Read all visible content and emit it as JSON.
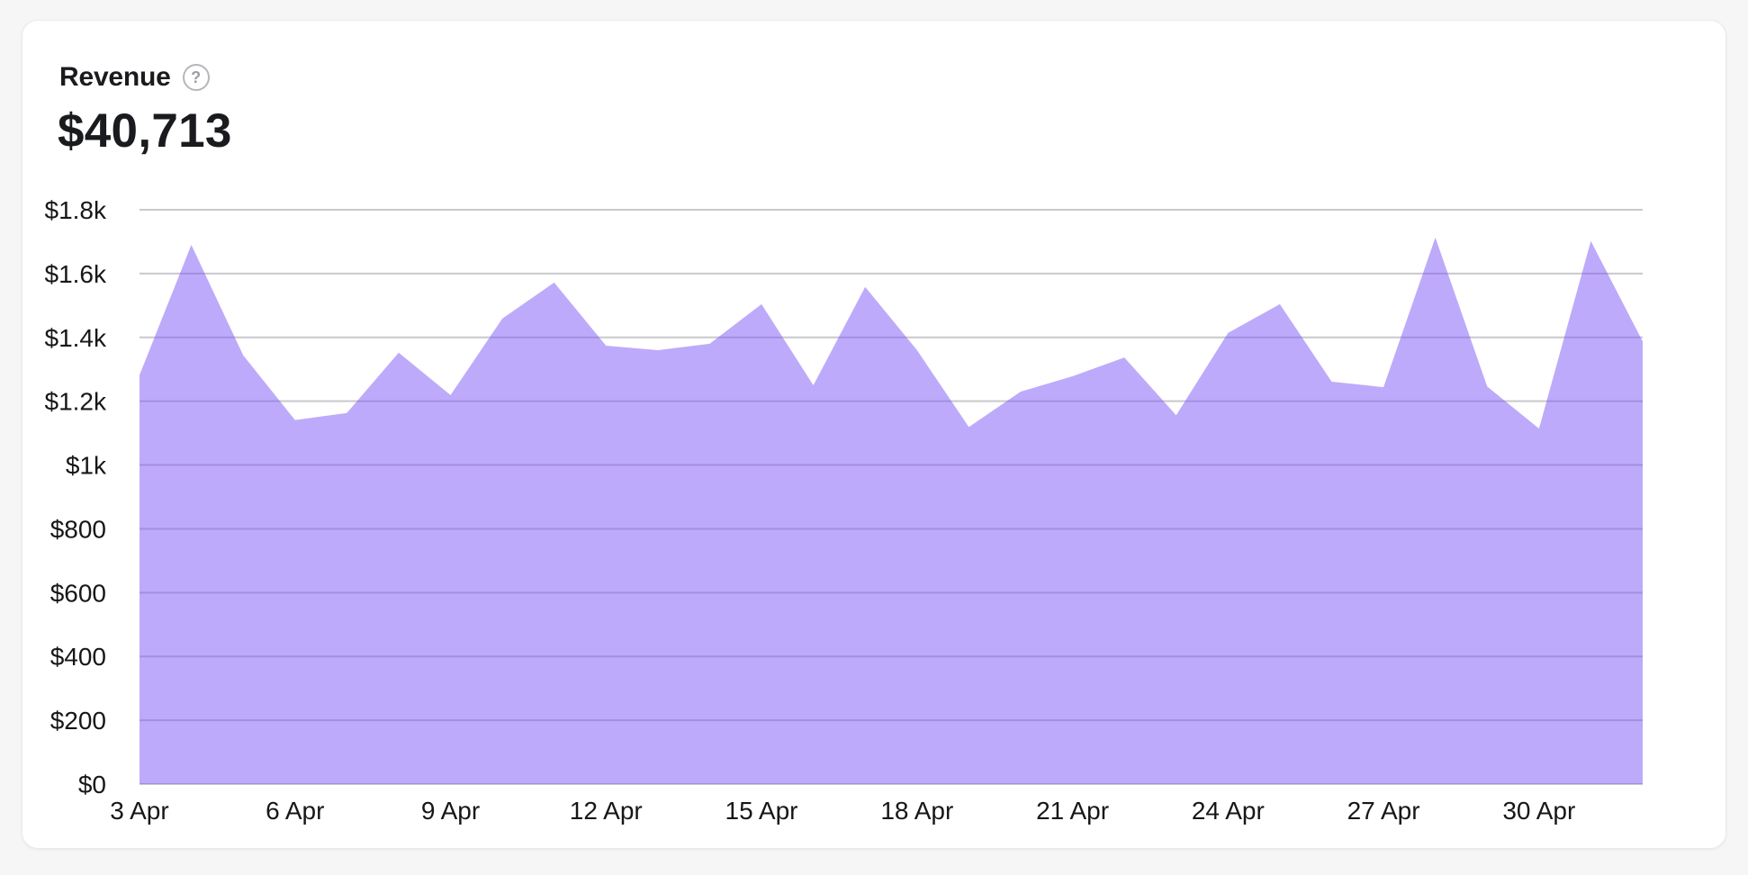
{
  "card": {
    "title": "Revenue",
    "help_icon": "?",
    "total": "$40,713"
  },
  "chart_data": {
    "type": "area",
    "title": "Revenue",
    "total_label": "$40,713",
    "x": [
      "3 Apr",
      "4 Apr",
      "5 Apr",
      "6 Apr",
      "7 Apr",
      "8 Apr",
      "9 Apr",
      "10 Apr",
      "11 Apr",
      "12 Apr",
      "13 Apr",
      "14 Apr",
      "15 Apr",
      "16 Apr",
      "17 Apr",
      "18 Apr",
      "19 Apr",
      "20 Apr",
      "21 Apr",
      "22 Apr",
      "23 Apr",
      "24 Apr",
      "25 Apr",
      "26 Apr",
      "27 Apr",
      "28 Apr",
      "29 Apr",
      "30 Apr",
      "1 May",
      "2 May"
    ],
    "values": [
      1282,
      1690,
      1344,
      1141,
      1163,
      1352,
      1219,
      1459,
      1572,
      1374,
      1360,
      1380,
      1504,
      1250,
      1558,
      1360,
      1119,
      1230,
      1278,
      1337,
      1156,
      1414,
      1504,
      1261,
      1244,
      1713,
      1246,
      1114,
      1702,
      1387
    ],
    "x_tick_labels": [
      "3 Apr",
      "6 Apr",
      "9 Apr",
      "12 Apr",
      "15 Apr",
      "18 Apr",
      "21 Apr",
      "24 Apr",
      "27 Apr",
      "30 Apr"
    ],
    "x_tick_indices": [
      0,
      3,
      6,
      9,
      12,
      15,
      18,
      21,
      24,
      27
    ],
    "y_ticks": [
      {
        "label": "$1.8k",
        "value": 1800
      },
      {
        "label": "$1.6k",
        "value": 1600
      },
      {
        "label": "$1.4k",
        "value": 1400
      },
      {
        "label": "$1.2k",
        "value": 1200
      },
      {
        "label": "$1k",
        "value": 1000
      },
      {
        "label": "$800",
        "value": 800
      },
      {
        "label": "$600",
        "value": 600
      },
      {
        "label": "$400",
        "value": 400
      },
      {
        "label": "$200",
        "value": 200
      },
      {
        "label": "$0",
        "value": 0
      }
    ],
    "ylim": [
      0,
      1800
    ],
    "grid": true,
    "legend": false,
    "area_color": "rgba(125,85,245,0.5)",
    "gridline_color": "#c9c9cd",
    "axis_text_color": "#17171a"
  }
}
